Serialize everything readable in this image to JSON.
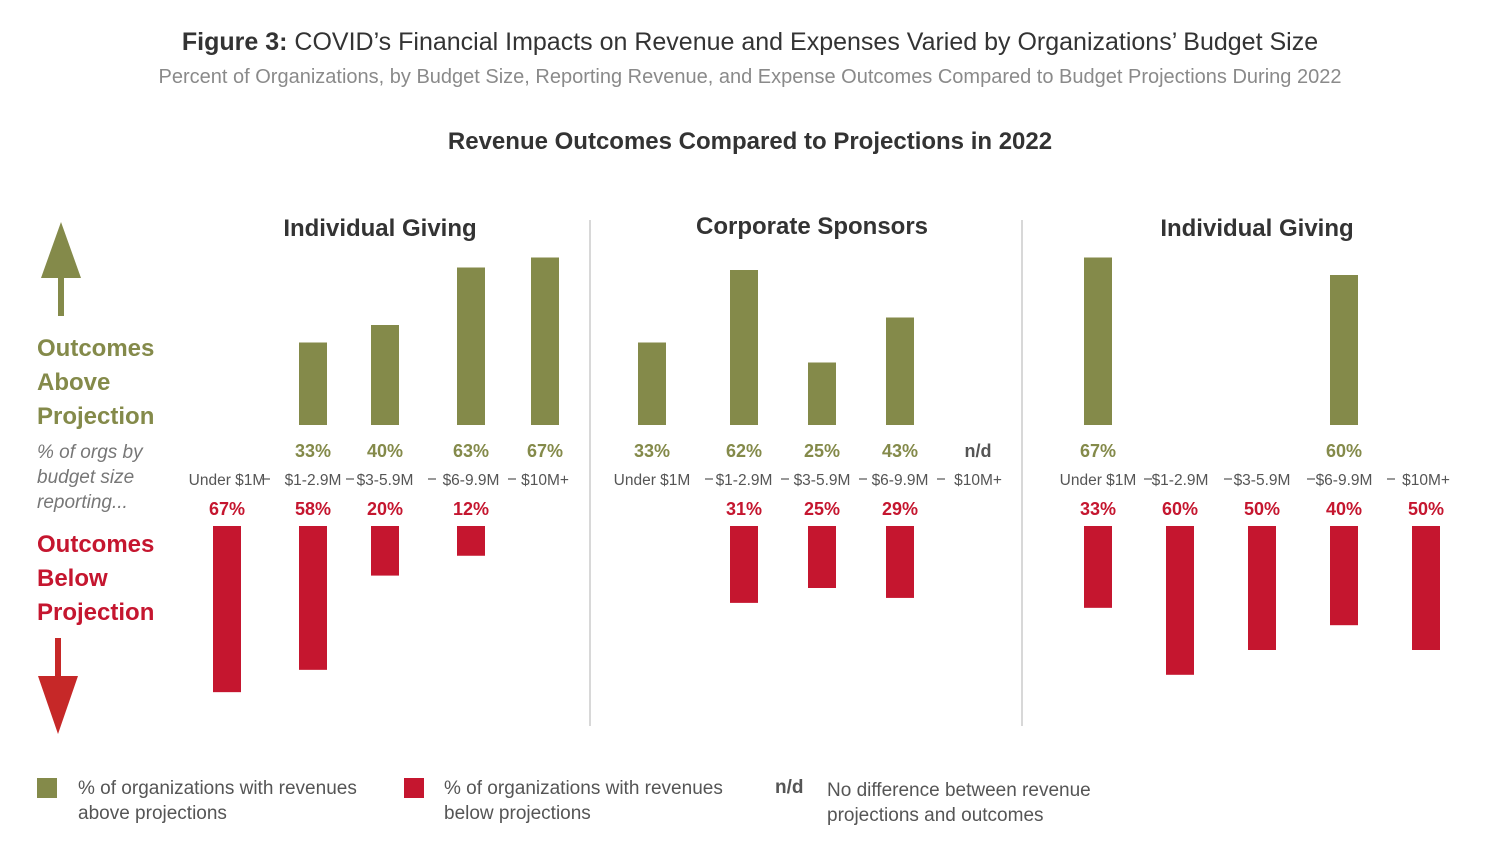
{
  "header": {
    "figure_label": "Figure 3:",
    "title": "COVID’s Financial Impacts on Revenue and Expenses Varied by Organizations’ Budget Size",
    "subtitle": "Percent of Organizations, by Budget Size, Reporting Revenue, and Expense Outcomes Compared to Budget Projections During 2022",
    "section_title": "Revenue Outcomes Compared to Projections in 2022"
  },
  "side": {
    "above_lines": [
      "Outcomes",
      "Above",
      "Projection"
    ],
    "note_lines": [
      "% of orgs by",
      "budget size",
      "reporting..."
    ],
    "below_lines": [
      "Outcomes",
      "Below",
      "Projection"
    ]
  },
  "colors": {
    "above": "#848a4a",
    "below": "#c5162f",
    "arrow_down": "#c62828",
    "divider": "#cccccc",
    "text_dark": "#333333",
    "text_gray": "#555555"
  },
  "chart_data": [
    {
      "type": "bar",
      "title": "Individual Giving",
      "categories": [
        "Under $1M",
        "$1-2.9M",
        "$3-5.9M",
        "$6-9.9M",
        "$10M+"
      ],
      "series": [
        {
          "name": "above",
          "values": [
            null,
            33,
            40,
            63,
            67
          ],
          "labels": [
            "",
            "33%",
            "40%",
            "63%",
            "67%"
          ]
        },
        {
          "name": "below",
          "values": [
            67,
            58,
            20,
            12,
            null
          ],
          "labels": [
            "67%",
            "58%",
            "20%",
            "12%",
            ""
          ]
        }
      ]
    },
    {
      "type": "bar",
      "title": "Corporate Sponsors",
      "categories": [
        "Under $1M",
        "$1-2.9M",
        "$3-5.9M",
        "$6-9.9M",
        "$10M+"
      ],
      "series": [
        {
          "name": "above",
          "values": [
            33,
            62,
            25,
            43,
            null
          ],
          "labels": [
            "33%",
            "62%",
            "25%",
            "43%",
            "n/d"
          ]
        },
        {
          "name": "below",
          "values": [
            null,
            31,
            25,
            29,
            null
          ],
          "labels": [
            "",
            "31%",
            "25%",
            "29%",
            ""
          ]
        }
      ]
    },
    {
      "type": "bar",
      "title": "Individual Giving",
      "categories": [
        "Under $1M",
        "$1-2.9M",
        "$3-5.9M",
        "$6-9.9M",
        "$10M+"
      ],
      "series": [
        {
          "name": "above",
          "values": [
            67,
            null,
            null,
            60,
            null
          ],
          "labels": [
            "67%",
            "",
            "",
            "60%",
            ""
          ]
        },
        {
          "name": "below",
          "values": [
            33,
            60,
            50,
            40,
            50
          ],
          "labels": [
            "33%",
            "60%",
            "50%",
            "40%",
            "50%"
          ]
        }
      ]
    }
  ],
  "legend": {
    "above_lines": [
      "% of organizations with revenues",
      "above projections"
    ],
    "below_lines": [
      "% of organizations with revenues",
      "below projections"
    ],
    "nd_key": "n/d",
    "nd_lines": [
      "No difference between revenue",
      "projections and outcomes"
    ]
  }
}
